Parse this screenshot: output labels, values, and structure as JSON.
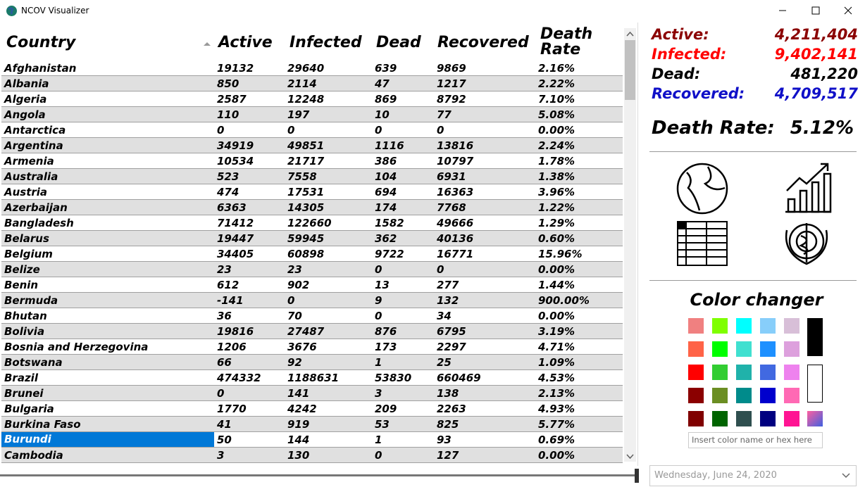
{
  "window": {
    "title": "NCOV Visualizer"
  },
  "table": {
    "columns": [
      "Country",
      "Active",
      "Infected",
      "Dead",
      "Recovered",
      "Death Rate"
    ],
    "rows": [
      [
        "Afghanistan",
        "19132",
        "29640",
        "639",
        "9869",
        "2.16%"
      ],
      [
        "Albania",
        "850",
        "2114",
        "47",
        "1217",
        "2.22%"
      ],
      [
        "Algeria",
        "2587",
        "12248",
        "869",
        "8792",
        "7.10%"
      ],
      [
        "Angola",
        "110",
        "197",
        "10",
        "77",
        "5.08%"
      ],
      [
        "Antarctica",
        "0",
        "0",
        "0",
        "0",
        "0.00%"
      ],
      [
        "Argentina",
        "34919",
        "49851",
        "1116",
        "13816",
        "2.24%"
      ],
      [
        "Armenia",
        "10534",
        "21717",
        "386",
        "10797",
        "1.78%"
      ],
      [
        "Australia",
        "523",
        "7558",
        "104",
        "6931",
        "1.38%"
      ],
      [
        "Austria",
        "474",
        "17531",
        "694",
        "16363",
        "3.96%"
      ],
      [
        "Azerbaijan",
        "6363",
        "14305",
        "174",
        "7768",
        "1.22%"
      ],
      [
        "Bangladesh",
        "71412",
        "122660",
        "1582",
        "49666",
        "1.29%"
      ],
      [
        "Belarus",
        "19447",
        "59945",
        "362",
        "40136",
        "0.60%"
      ],
      [
        "Belgium",
        "34405",
        "60898",
        "9722",
        "16771",
        "15.96%"
      ],
      [
        "Belize",
        "23",
        "23",
        "0",
        "0",
        "0.00%"
      ],
      [
        "Benin",
        "612",
        "902",
        "13",
        "277",
        "1.44%"
      ],
      [
        "Bermuda",
        "-141",
        "0",
        "9",
        "132",
        "900.00%"
      ],
      [
        "Bhutan",
        "36",
        "70",
        "0",
        "34",
        "0.00%"
      ],
      [
        "Bolivia",
        "19816",
        "27487",
        "876",
        "6795",
        "3.19%"
      ],
      [
        "Bosnia and Herzegovina",
        "1206",
        "3676",
        "173",
        "2297",
        "4.71%"
      ],
      [
        "Botswana",
        "66",
        "92",
        "1",
        "25",
        "1.09%"
      ],
      [
        "Brazil",
        "474332",
        "1188631",
        "53830",
        "660469",
        "4.53%"
      ],
      [
        "Brunei",
        "0",
        "141",
        "3",
        "138",
        "2.13%"
      ],
      [
        "Bulgaria",
        "1770",
        "4242",
        "209",
        "2263",
        "4.93%"
      ],
      [
        "Burkina Faso",
        "41",
        "919",
        "53",
        "825",
        "5.77%"
      ],
      [
        "Burundi",
        "50",
        "144",
        "1",
        "93",
        "0.69%"
      ],
      [
        "Cambodia",
        "3",
        "130",
        "0",
        "127",
        "0.00%"
      ]
    ]
  },
  "summary": {
    "active": {
      "label": "Active:",
      "value": "4,211,404"
    },
    "infected": {
      "label": "Infected:",
      "value": "9,402,141"
    },
    "dead": {
      "label": "Dead:",
      "value": "481,220"
    },
    "recovered": {
      "label": "Recovered:",
      "value": "4,709,517"
    },
    "death_rate": {
      "label": "Death Rate:",
      "value": "5.12%"
    }
  },
  "color_changer": {
    "title": "Color changer",
    "input_placeholder": "Insert color name or hex here"
  },
  "date_picker": {
    "value": "Wednesday, June 24, 2020"
  }
}
